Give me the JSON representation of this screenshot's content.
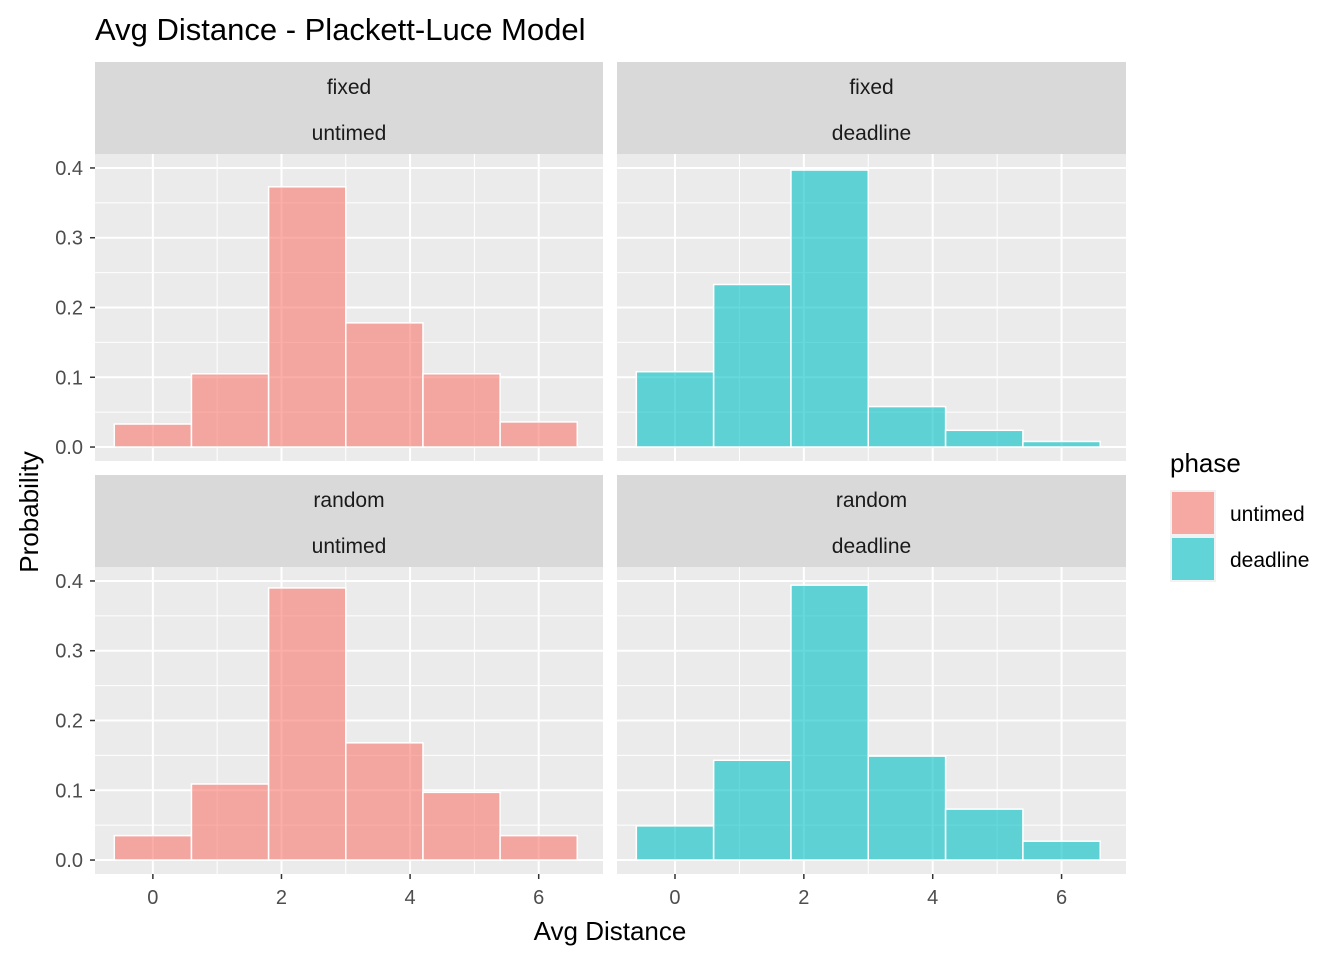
{
  "chart_data": {
    "type": "bar",
    "title": "Avg Distance - Plackett-Luce Model",
    "xlabel": "Avg Distance",
    "ylabel": "Probability",
    "xlim": [
      -0.9,
      7.0
    ],
    "ylim": [
      -0.02,
      0.42
    ],
    "x_ticks": [
      0,
      2,
      4,
      6
    ],
    "y_ticks": [
      0.0,
      0.1,
      0.2,
      0.3,
      0.4
    ],
    "y_tick_labels": [
      "0.0",
      "0.1",
      "0.2",
      "0.3",
      "0.4"
    ],
    "bin_edges": [
      -0.6,
      0.6,
      1.8,
      3.0,
      4.2,
      5.4,
      6.6
    ],
    "grid": true,
    "legend": {
      "title": "phase",
      "position": "right",
      "items": [
        {
          "label": "untimed",
          "color": "#F8766D"
        },
        {
          "label": "deadline",
          "color": "#00BFC4"
        }
      ]
    },
    "panels": [
      {
        "strip": [
          "fixed",
          "untimed"
        ],
        "phase": "untimed",
        "color": "#F8766D",
        "values": [
          0.033,
          0.105,
          0.373,
          0.178,
          0.105,
          0.036
        ]
      },
      {
        "strip": [
          "fixed",
          "deadline"
        ],
        "phase": "deadline",
        "color": "#00BFC4",
        "values": [
          0.108,
          0.233,
          0.397,
          0.058,
          0.024,
          0.008
        ]
      },
      {
        "strip": [
          "random",
          "untimed"
        ],
        "phase": "untimed",
        "color": "#F8766D",
        "values": [
          0.035,
          0.109,
          0.39,
          0.168,
          0.097,
          0.035
        ]
      },
      {
        "strip": [
          "random",
          "deadline"
        ],
        "phase": "deadline",
        "color": "#00BFC4",
        "values": [
          0.049,
          0.143,
          0.394,
          0.149,
          0.073,
          0.027
        ]
      }
    ]
  }
}
